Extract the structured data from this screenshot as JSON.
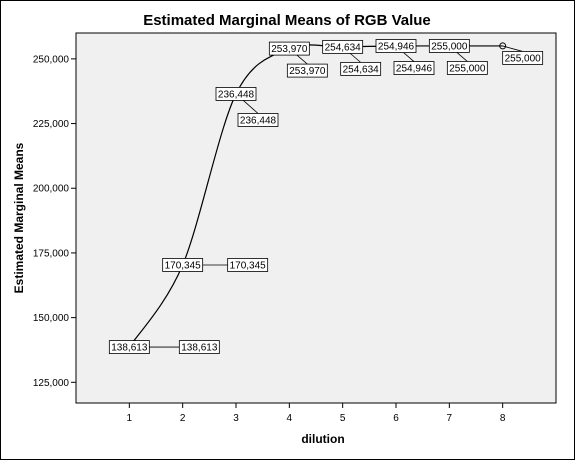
{
  "chart_data": {
    "type": "line",
    "title": "Estimated Marginal Means of RGB Value",
    "xlabel": "dilution",
    "ylabel": "Estimated Marginal Means",
    "x": [
      1,
      2,
      3,
      4,
      5,
      6,
      7,
      8
    ],
    "xtick_labels": [
      "1",
      "2",
      "3",
      "4",
      "5",
      "6",
      "7",
      "8"
    ],
    "series": [
      {
        "values": [
          138613,
          170345,
          236448,
          253970,
          254634,
          254946,
          255000,
          255000
        ]
      }
    ],
    "data_labels": [
      "138,613",
      "170,345",
      "236,448",
      "253,970",
      "254,634",
      "254,946",
      "255,000",
      "255,000"
    ],
    "yticks": [
      125000,
      150000,
      175000,
      200000,
      225000,
      250000
    ],
    "ytick_labels": [
      "125,000",
      "150,000",
      "175,000",
      "200,000",
      "225,000",
      "250,000"
    ],
    "ylim": [
      117000,
      260000
    ],
    "xlim": [
      0,
      9
    ],
    "grid": false,
    "legend": "none",
    "colors": {
      "plot_background": "#f0f0f0",
      "line": "#000000",
      "label_box": "#ffffff"
    }
  }
}
